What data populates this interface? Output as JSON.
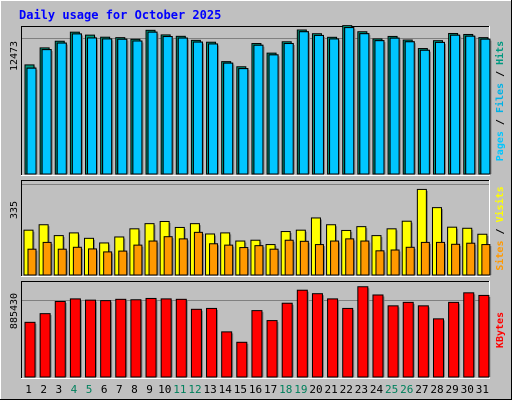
{
  "chart_data": {
    "type": "bar",
    "title": "Daily usage for October 2025",
    "x": [
      "1",
      "2",
      "3",
      "4",
      "5",
      "6",
      "7",
      "8",
      "9",
      "10",
      "11",
      "12",
      "13",
      "14",
      "15",
      "16",
      "17",
      "18",
      "19",
      "20",
      "21",
      "22",
      "23",
      "24",
      "25",
      "26",
      "27",
      "28",
      "29",
      "30",
      "31"
    ],
    "weekend_days": [
      "4",
      "5",
      "11",
      "12",
      "18",
      "19",
      "25",
      "26"
    ],
    "colors": {
      "hits": "#009980",
      "files": "#00b2e6",
      "pages": "#00c6ff",
      "visits": "#ffff00",
      "sites": "#ff9900",
      "kbytes": "#ff0000",
      "title": "#0000ff",
      "weekday_label": "#000000",
      "weekend_label": "#00805c",
      "plot_bg": "#c0c0c0",
      "frame_bg": "#c0c0c0"
    },
    "panels": [
      {
        "name": "hits-files-pages",
        "ylabel_parts": [
          "Pages",
          "Files",
          "Hits"
        ],
        "y_tick_label": "12473",
        "ylim": [
          0,
          13200
        ],
        "series": [
          {
            "name": "Hits",
            "values": [
              10000,
              11560,
              12170,
              13000,
              12730,
              12540,
              12500,
              12350,
              13170,
              12750,
              12620,
              12250,
              12080,
              10300,
              9830,
              11960,
              11080,
              12120,
              13200,
              12860,
              12530,
              13600,
              13040,
              12380,
              12610,
              12280,
              11500,
              12220,
              12880,
              12790,
              12500
            ]
          },
          {
            "name": "Files",
            "values": [
              9700,
              11400,
              12000,
              12840,
              12470,
              12380,
              12350,
              12190,
              13000,
              12600,
              12460,
              12090,
              11920,
              10160,
              9660,
              11800,
              10920,
              11960,
              13040,
              12700,
              12380,
              13420,
              12860,
              12220,
              12450,
              12120,
              11340,
              12060,
              12720,
              12630,
              12360
            ]
          },
          {
            "name": "Pages",
            "values": [
              9700,
              11400,
              12000,
              12840,
              12470,
              12380,
              12350,
              12190,
              13000,
              12600,
              12460,
              12090,
              11920,
              10160,
              9660,
              11800,
              10920,
              11960,
              13040,
              12700,
              12380,
              13420,
              12860,
              12220,
              12450,
              12120,
              11340,
              12060,
              12720,
              12630,
              12360
            ]
          }
        ]
      },
      {
        "name": "visits-sites",
        "ylabel_parts": [
          "Sites",
          "Visits"
        ],
        "y_tick_label": "335",
        "ylim": [
          0,
          335
        ],
        "series": [
          {
            "name": "Visits",
            "values": [
              165,
              185,
              145,
              155,
              135,
              118,
              140,
              170,
              189,
              197,
              175,
              189,
              151,
              155,
              125,
              128,
              112,
              160,
              165,
              210,
              185,
              164,
              178,
              145,
              170,
              198,
              315,
              248,
              176,
              172,
              150
            ]
          },
          {
            "name": "Sites",
            "values": [
              95,
              120,
              95,
              102,
              96,
              85,
              88,
              110,
              125,
              141,
              133,
              157,
              115,
              110,
              101,
              108,
              95,
              128,
              124,
              112,
              125,
              133,
              125,
              89,
              92,
              102,
              120,
              120,
              113,
              117,
              112
            ]
          }
        ]
      },
      {
        "name": "kbytes",
        "ylabel_parts": [
          "KBytes"
        ],
        "y_tick_label": "885430",
        "ylim": [
          0,
          1060000
        ],
        "series": [
          {
            "name": "KBytes",
            "values": [
              630000,
              730000,
              870000,
              900000,
              885430,
              880000,
              895000,
              890000,
              905000,
              900000,
              895000,
              780000,
              790000,
              520000,
              400000,
              765000,
              650000,
              850000,
              1000000,
              960000,
              900000,
              790000,
              1040000,
              945000,
              820000,
              860000,
              820000,
              670000,
              860000,
              970000,
              940000
            ]
          }
        ]
      }
    ]
  }
}
